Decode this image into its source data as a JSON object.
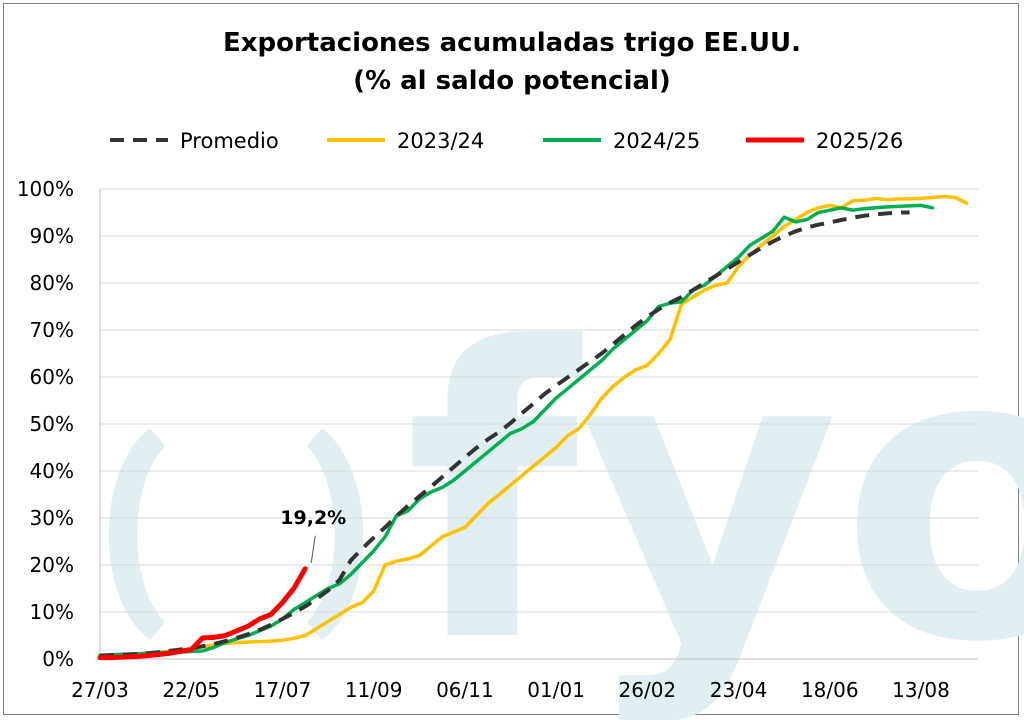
{
  "chart_data": {
    "type": "line",
    "title": "Exportaciones acumuladas trigo EE.UU.",
    "subtitle": "(% al saldo potencial)",
    "watermark": "fyo",
    "colors": {
      "Promedio": "#333333",
      "2023/24": "#ffc000",
      "2024/25": "#00b050",
      "2025/26": "#ff0000",
      "grid": "#d9d9d9",
      "watermark": "#e1eff3"
    },
    "legend_position": "top",
    "grid": true,
    "x_ticks": [
      "27/03",
      "22/05",
      "17/07",
      "11/09",
      "06/11",
      "01/01",
      "26/02",
      "23/04",
      "18/06",
      "13/08"
    ],
    "y_ticks": [
      "0%",
      "10%",
      "20%",
      "30%",
      "40%",
      "50%",
      "60%",
      "70%",
      "80%",
      "90%",
      "100%"
    ],
    "ylim": [
      0,
      100
    ],
    "x_unit": "week",
    "series": [
      {
        "name": "Promedio",
        "style": "dashed",
        "points": [
          [
            0,
            0.7
          ],
          [
            1,
            0.8
          ],
          [
            2,
            0.9
          ],
          [
            3,
            1.0
          ],
          [
            4,
            1.2
          ],
          [
            5,
            1.4
          ],
          [
            6,
            1.7
          ],
          [
            7,
            2.0
          ],
          [
            8,
            2.3
          ],
          [
            9,
            2.7
          ],
          [
            10,
            3.2
          ],
          [
            11,
            3.8
          ],
          [
            12,
            4.5
          ],
          [
            13,
            5.3
          ],
          [
            14,
            6.2
          ],
          [
            15,
            7.3
          ],
          [
            16,
            8.5
          ],
          [
            17,
            9.8
          ],
          [
            18,
            11.2
          ],
          [
            19,
            12.8
          ],
          [
            20,
            14.6
          ],
          [
            21,
            16.8
          ],
          [
            22,
            21.0
          ],
          [
            23,
            23.5
          ],
          [
            24,
            25.8
          ],
          [
            25,
            28.0
          ],
          [
            26,
            30.4
          ],
          [
            27,
            32.6
          ],
          [
            28,
            34.6
          ],
          [
            29,
            36.6
          ],
          [
            30,
            38.7
          ],
          [
            31,
            40.8
          ],
          [
            32,
            42.9
          ],
          [
            33,
            44.9
          ],
          [
            34,
            46.7
          ],
          [
            35,
            48.3
          ],
          [
            36,
            50.2
          ],
          [
            37,
            52.3
          ],
          [
            38,
            54.3
          ],
          [
            39,
            56.4
          ],
          [
            40,
            58.2
          ],
          [
            41,
            59.9
          ],
          [
            42,
            61.6
          ],
          [
            43,
            63.3
          ],
          [
            44,
            65.0
          ],
          [
            45,
            67.0
          ],
          [
            46,
            69.0
          ],
          [
            47,
            71.0
          ],
          [
            48,
            72.8
          ],
          [
            49,
            74.4
          ],
          [
            50,
            75.8
          ],
          [
            51,
            77.0
          ],
          [
            52,
            78.5
          ],
          [
            53,
            80.0
          ],
          [
            54,
            81.5
          ],
          [
            55,
            83.0
          ],
          [
            56,
            84.5
          ],
          [
            57,
            86.0
          ],
          [
            58,
            87.5
          ],
          [
            59,
            88.8
          ],
          [
            60,
            90.0
          ],
          [
            61,
            91.0
          ],
          [
            62,
            91.8
          ],
          [
            63,
            92.4
          ],
          [
            64,
            92.9
          ],
          [
            65,
            93.4
          ],
          [
            66,
            93.9
          ],
          [
            67,
            94.3
          ],
          [
            68,
            94.6
          ],
          [
            69,
            94.8
          ],
          [
            70,
            95.0
          ],
          [
            71,
            95.0
          ]
        ]
      },
      {
        "name": "2023/24",
        "style": "solid",
        "points": [
          [
            0,
            0.5
          ],
          [
            1,
            0.6
          ],
          [
            2,
            0.8
          ],
          [
            3,
            1.0
          ],
          [
            4,
            1.2
          ],
          [
            5,
            1.4
          ],
          [
            6,
            1.6
          ],
          [
            7,
            1.9
          ],
          [
            8,
            2.2
          ],
          [
            9,
            2.6
          ],
          [
            10,
            3.0
          ],
          [
            11,
            3.3
          ],
          [
            12,
            3.5
          ],
          [
            13,
            3.6
          ],
          [
            14,
            3.7
          ],
          [
            15,
            3.8
          ],
          [
            16,
            4.0
          ],
          [
            17,
            4.4
          ],
          [
            18,
            5.0
          ],
          [
            19,
            6.5
          ],
          [
            20,
            8.0
          ],
          [
            21,
            9.5
          ],
          [
            22,
            11.0
          ],
          [
            23,
            12.0
          ],
          [
            24,
            14.5
          ],
          [
            25,
            20.0
          ],
          [
            26,
            20.8
          ],
          [
            27,
            21.3
          ],
          [
            28,
            22.0
          ],
          [
            29,
            24.0
          ],
          [
            30,
            26.0
          ],
          [
            31,
            27.0
          ],
          [
            32,
            28.0
          ],
          [
            33,
            30.5
          ],
          [
            34,
            33.0
          ],
          [
            35,
            35.0
          ],
          [
            36,
            37.0
          ],
          [
            37,
            39.0
          ],
          [
            38,
            41.0
          ],
          [
            39,
            43.0
          ],
          [
            40,
            45.0
          ],
          [
            41,
            47.5
          ],
          [
            42,
            49.0
          ],
          [
            43,
            52.0
          ],
          [
            44,
            55.5
          ],
          [
            45,
            58.0
          ],
          [
            46,
            60.0
          ],
          [
            47,
            61.5
          ],
          [
            48,
            62.5
          ],
          [
            49,
            65.0
          ],
          [
            50,
            68.0
          ],
          [
            51,
            75.5
          ],
          [
            52,
            77.0
          ],
          [
            53,
            78.5
          ],
          [
            54,
            79.5
          ],
          [
            55,
            80.0
          ],
          [
            56,
            83.5
          ],
          [
            57,
            86.0
          ],
          [
            58,
            88.0
          ],
          [
            59,
            90.0
          ],
          [
            60,
            92.0
          ],
          [
            61,
            93.5
          ],
          [
            62,
            95.0
          ],
          [
            63,
            96.0
          ],
          [
            64,
            96.5
          ],
          [
            65,
            96.0
          ],
          [
            66,
            97.5
          ],
          [
            67,
            97.6
          ],
          [
            68,
            98.0
          ],
          [
            69,
            97.7
          ],
          [
            70,
            97.9
          ],
          [
            71,
            97.9
          ],
          [
            72,
            98.0
          ],
          [
            73,
            98.2
          ],
          [
            74,
            98.4
          ],
          [
            75,
            98.2
          ],
          [
            76,
            97.0
          ]
        ]
      },
      {
        "name": "2024/25",
        "style": "solid",
        "points": [
          [
            0,
            0.8
          ],
          [
            1,
            0.9
          ],
          [
            2,
            1.0
          ],
          [
            3,
            1.1
          ],
          [
            4,
            1.2
          ],
          [
            5,
            1.3
          ],
          [
            6,
            1.4
          ],
          [
            7,
            1.5
          ],
          [
            8,
            1.6
          ],
          [
            9,
            1.7
          ],
          [
            10,
            2.5
          ],
          [
            11,
            3.5
          ],
          [
            12,
            4.3
          ],
          [
            13,
            5.0
          ],
          [
            14,
            6.0
          ],
          [
            15,
            7.0
          ],
          [
            16,
            8.5
          ],
          [
            17,
            10.5
          ],
          [
            18,
            12.0
          ],
          [
            19,
            13.5
          ],
          [
            20,
            15.0
          ],
          [
            21,
            16.0
          ],
          [
            22,
            18.0
          ],
          [
            23,
            20.5
          ],
          [
            24,
            23.0
          ],
          [
            25,
            26.0
          ],
          [
            26,
            30.5
          ],
          [
            27,
            31.5
          ],
          [
            28,
            34.0
          ],
          [
            29,
            35.5
          ],
          [
            30,
            36.5
          ],
          [
            31,
            38.0
          ],
          [
            32,
            40.0
          ],
          [
            33,
            42.0
          ],
          [
            34,
            44.0
          ],
          [
            35,
            46.0
          ],
          [
            36,
            48.0
          ],
          [
            37,
            49.0
          ],
          [
            38,
            50.5
          ],
          [
            39,
            53.0
          ],
          [
            40,
            55.5
          ],
          [
            41,
            57.5
          ],
          [
            42,
            59.5
          ],
          [
            43,
            61.5
          ],
          [
            44,
            63.5
          ],
          [
            45,
            66.0
          ],
          [
            46,
            68.0
          ],
          [
            47,
            70.0
          ],
          [
            48,
            72.0
          ],
          [
            49,
            75.0
          ],
          [
            50,
            75.7
          ],
          [
            51,
            76.0
          ],
          [
            52,
            78.5
          ],
          [
            53,
            79.5
          ],
          [
            54,
            81.5
          ],
          [
            55,
            83.5
          ],
          [
            56,
            85.5
          ],
          [
            57,
            88.0
          ],
          [
            58,
            89.5
          ],
          [
            59,
            91.0
          ],
          [
            60,
            94.0
          ],
          [
            61,
            93.0
          ],
          [
            62,
            93.5
          ],
          [
            63,
            95.0
          ],
          [
            64,
            95.5
          ],
          [
            65,
            96.0
          ],
          [
            66,
            95.5
          ],
          [
            67,
            95.8
          ],
          [
            68,
            96.0
          ],
          [
            69,
            96.2
          ],
          [
            70,
            96.3
          ],
          [
            71,
            96.4
          ],
          [
            72,
            96.5
          ],
          [
            73,
            96.0
          ]
        ]
      },
      {
        "name": "2025/26",
        "style": "solid",
        "points": [
          [
            0,
            0.3
          ],
          [
            1,
            0.3
          ],
          [
            2,
            0.4
          ],
          [
            3,
            0.5
          ],
          [
            4,
            0.7
          ],
          [
            5,
            0.9
          ],
          [
            6,
            1.2
          ],
          [
            7,
            1.6
          ],
          [
            8,
            2.0
          ],
          [
            9,
            4.5
          ],
          [
            10,
            4.6
          ],
          [
            11,
            5.0
          ],
          [
            12,
            6.0
          ],
          [
            13,
            7.0
          ],
          [
            14,
            8.5
          ],
          [
            15,
            9.5
          ],
          [
            16,
            12.0
          ],
          [
            17,
            15.0
          ],
          [
            18,
            19.2
          ]
        ]
      }
    ],
    "annotations": [
      {
        "label": "19,2%",
        "series": "2025/26",
        "x": 18,
        "y": 19.2
      }
    ]
  }
}
